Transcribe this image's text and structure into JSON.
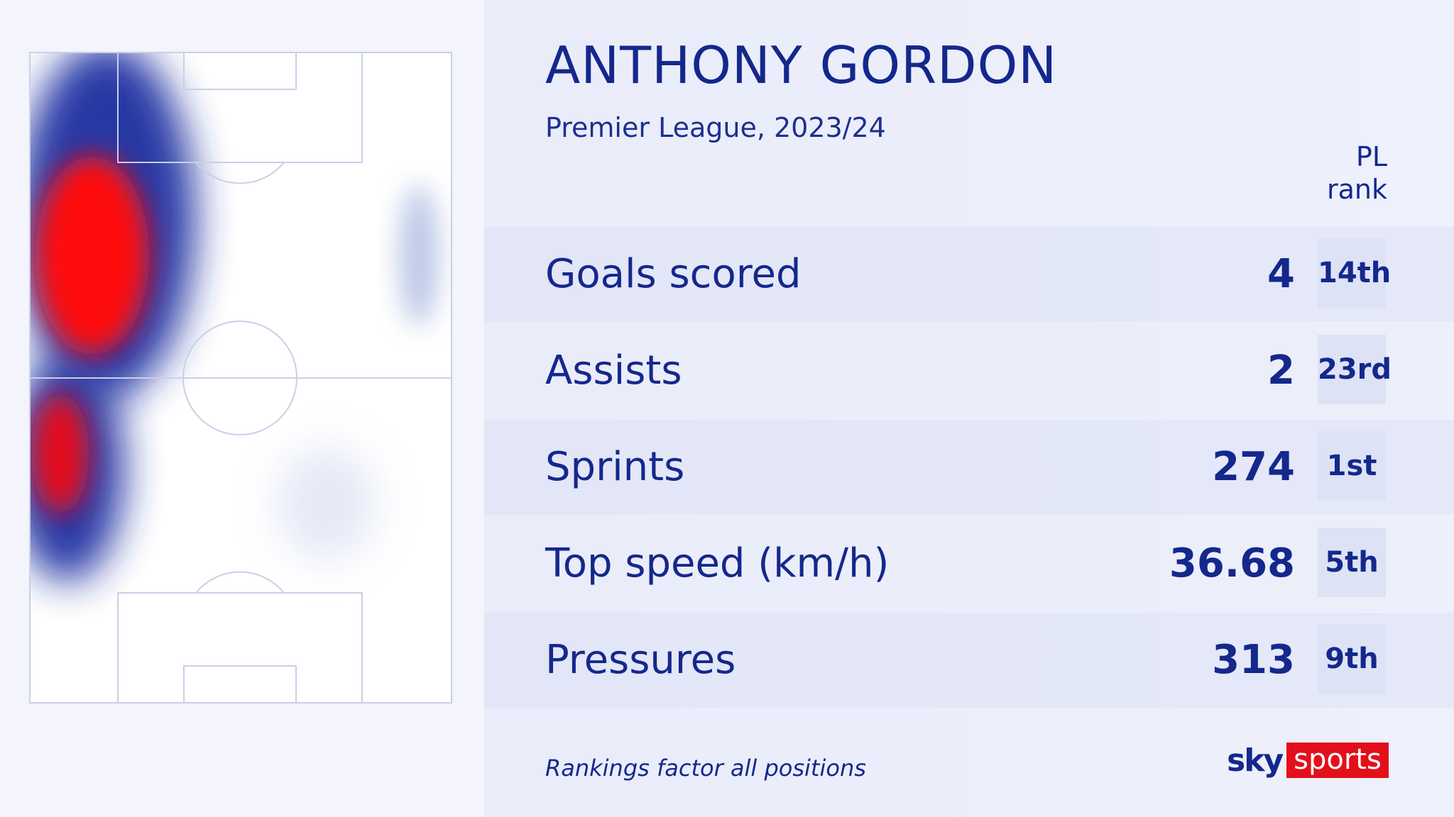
{
  "header": {
    "title": "ANTHONY GORDON",
    "subtitle": "Premier League, 2023/24",
    "rank_header": "PL rank"
  },
  "table": {
    "rows": [
      {
        "label": "Goals scored",
        "value": 4,
        "rank": "14th"
      },
      {
        "label": "Assists",
        "value": 2,
        "rank": "23rd"
      },
      {
        "label": "Sprints",
        "value": 274,
        "rank": "1st"
      },
      {
        "label": "Top speed (km/h)",
        "value": 36.68,
        "rank": "5th"
      },
      {
        "label": "Pressures",
        "value": 313,
        "rank": "9th"
      }
    ]
  },
  "footnote": "Rankings factor all positions",
  "logo": {
    "sky": "sky",
    "sports": "sports"
  }
}
